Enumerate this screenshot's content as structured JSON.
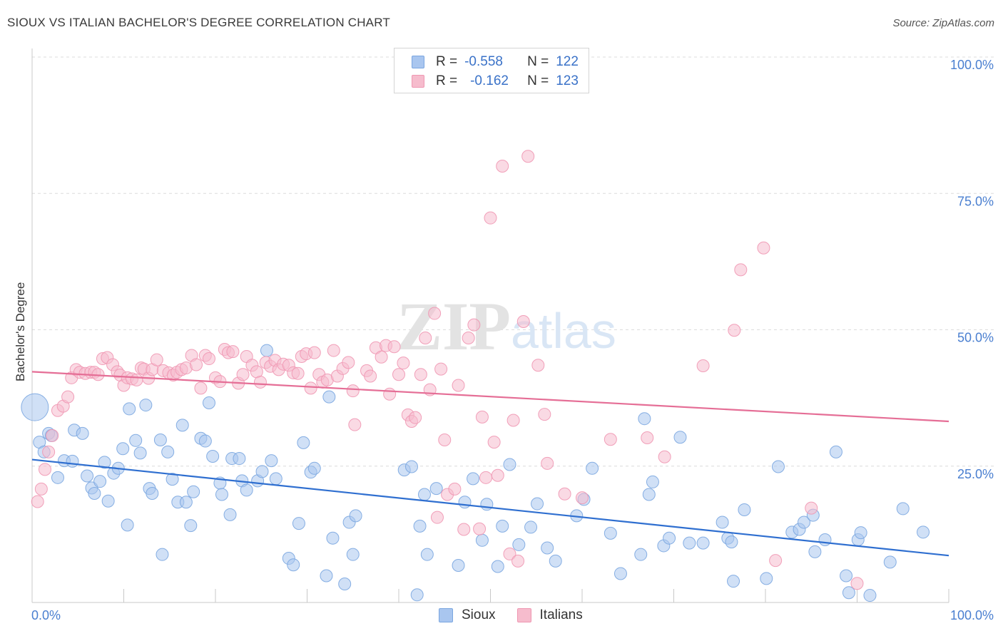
{
  "header": {
    "title": "SIOUX VS ITALIAN BACHELOR'S DEGREE CORRELATION CHART",
    "source": "Source: ZipAtlas.com"
  },
  "watermark": {
    "zip": "ZIP",
    "atlas": "atlas"
  },
  "legend": {
    "rows": [
      {
        "r_label": "R =",
        "r_value": "-0.558",
        "n_label": "N =",
        "n_value": "122"
      },
      {
        "r_label": "R =",
        "r_value": "-0.162",
        "n_label": "N =",
        "n_value": "123"
      }
    ]
  },
  "bottom_legend": {
    "sioux": "Sioux",
    "italians": "Italians"
  },
  "colors": {
    "sioux_fill": "#a9c6ef",
    "sioux_stroke": "#7aa6e0",
    "sioux_line": "#2f6fd0",
    "italians_fill": "#f6bccd",
    "italians_stroke": "#ef97b2",
    "italians_line": "#e56e96",
    "accent_text": "#4a7fd0"
  },
  "chart_data": {
    "type": "scatter",
    "title": "SIOUX VS ITALIAN BACHELOR'S DEGREE CORRELATION CHART",
    "xlabel": "",
    "ylabel": "Bachelor's Degree",
    "xlim": [
      0,
      100
    ],
    "ylim": [
      0,
      100
    ],
    "x_tick_labels": [
      "0.0%",
      "100.0%"
    ],
    "y_ticks": [
      25,
      50,
      75,
      100
    ],
    "y_tick_labels": [
      "25.0%",
      "50.0%",
      "75.0%",
      "100.0%"
    ],
    "grid": true,
    "series": [
      {
        "name": "Sioux",
        "r": -0.558,
        "n": 122,
        "trend": {
          "x": [
            0,
            100
          ],
          "y": [
            26.2,
            8.6
          ]
        },
        "points": [
          [
            0.3,
            35.8
          ],
          [
            0.8,
            29.4
          ],
          [
            1.3,
            27.6
          ],
          [
            1.8,
            31.0
          ],
          [
            2.1,
            30.6
          ],
          [
            2.8,
            22.9
          ],
          [
            3.5,
            26.0
          ],
          [
            4.4,
            25.9
          ],
          [
            4.6,
            31.6
          ],
          [
            5.5,
            31.0
          ],
          [
            6.0,
            23.2
          ],
          [
            6.5,
            21.0
          ],
          [
            6.8,
            20.0
          ],
          [
            7.4,
            22.2
          ],
          [
            7.9,
            25.7
          ],
          [
            8.3,
            18.6
          ],
          [
            8.9,
            23.7
          ],
          [
            9.4,
            24.6
          ],
          [
            9.9,
            28.2
          ],
          [
            10.4,
            14.2
          ],
          [
            10.6,
            35.5
          ],
          [
            11.3,
            29.7
          ],
          [
            11.8,
            27.4
          ],
          [
            12.4,
            36.2
          ],
          [
            12.8,
            20.9
          ],
          [
            13.1,
            20.0
          ],
          [
            14.0,
            29.8
          ],
          [
            14.2,
            8.8
          ],
          [
            14.8,
            27.6
          ],
          [
            15.3,
            22.6
          ],
          [
            15.9,
            18.4
          ],
          [
            16.4,
            32.5
          ],
          [
            16.8,
            18.4
          ],
          [
            17.3,
            14.1
          ],
          [
            17.6,
            20.3
          ],
          [
            18.4,
            30.1
          ],
          [
            18.9,
            29.6
          ],
          [
            19.3,
            36.6
          ],
          [
            19.7,
            26.8
          ],
          [
            20.5,
            21.9
          ],
          [
            20.7,
            19.8
          ],
          [
            21.6,
            16.1
          ],
          [
            21.8,
            26.4
          ],
          [
            22.6,
            26.4
          ],
          [
            22.9,
            22.3
          ],
          [
            23.4,
            20.6
          ],
          [
            24.6,
            22.3
          ],
          [
            25.1,
            24.0
          ],
          [
            25.6,
            46.2
          ],
          [
            26.1,
            26.0
          ],
          [
            26.6,
            22.7
          ],
          [
            28.0,
            8.1
          ],
          [
            28.5,
            6.9
          ],
          [
            29.1,
            14.5
          ],
          [
            29.6,
            29.3
          ],
          [
            30.4,
            23.9
          ],
          [
            30.8,
            24.6
          ],
          [
            32.1,
            4.9
          ],
          [
            32.4,
            37.7
          ],
          [
            32.8,
            11.8
          ],
          [
            34.1,
            3.4
          ],
          [
            34.6,
            14.7
          ],
          [
            35.0,
            8.8
          ],
          [
            35.3,
            15.9
          ],
          [
            40.6,
            24.3
          ],
          [
            41.4,
            24.9
          ],
          [
            42.0,
            1.4
          ],
          [
            42.3,
            14.0
          ],
          [
            42.8,
            19.8
          ],
          [
            43.1,
            8.8
          ],
          [
            44.1,
            20.9
          ],
          [
            46.5,
            6.8
          ],
          [
            47.2,
            18.4
          ],
          [
            48.1,
            22.7
          ],
          [
            49.1,
            11.4
          ],
          [
            49.6,
            18.0
          ],
          [
            50.8,
            6.6
          ],
          [
            51.3,
            14.0
          ],
          [
            52.1,
            25.3
          ],
          [
            53.1,
            10.6
          ],
          [
            54.4,
            13.8
          ],
          [
            55.1,
            18.1
          ],
          [
            56.2,
            10.0
          ],
          [
            57.1,
            7.6
          ],
          [
            59.4,
            15.9
          ],
          [
            60.2,
            18.9
          ],
          [
            61.1,
            24.6
          ],
          [
            63.1,
            12.7
          ],
          [
            64.2,
            5.3
          ],
          [
            66.4,
            8.8
          ],
          [
            66.8,
            33.7
          ],
          [
            67.3,
            19.8
          ],
          [
            67.7,
            22.1
          ],
          [
            68.9,
            10.4
          ],
          [
            69.5,
            11.8
          ],
          [
            70.7,
            30.3
          ],
          [
            71.7,
            10.9
          ],
          [
            73.2,
            10.9
          ],
          [
            75.3,
            14.7
          ],
          [
            75.9,
            11.8
          ],
          [
            76.3,
            11.1
          ],
          [
            76.5,
            3.9
          ],
          [
            77.7,
            17.0
          ],
          [
            80.1,
            4.4
          ],
          [
            81.4,
            24.9
          ],
          [
            82.9,
            12.9
          ],
          [
            83.7,
            13.4
          ],
          [
            84.2,
            14.7
          ],
          [
            85.2,
            16.0
          ],
          [
            85.4,
            9.3
          ],
          [
            86.5,
            11.5
          ],
          [
            87.7,
            27.6
          ],
          [
            88.8,
            4.9
          ],
          [
            89.1,
            1.8
          ],
          [
            90.1,
            11.5
          ],
          [
            90.4,
            12.8
          ],
          [
            91.4,
            1.3
          ],
          [
            93.6,
            7.4
          ],
          [
            95.0,
            17.2
          ],
          [
            97.2,
            12.9
          ]
        ]
      },
      {
        "name": "Italians",
        "r": -0.162,
        "n": 123,
        "trend": {
          "x": [
            0,
            100
          ],
          "y": [
            42.3,
            33.2
          ]
        },
        "points": [
          [
            0.6,
            18.5
          ],
          [
            1.0,
            20.8
          ],
          [
            1.4,
            24.4
          ],
          [
            1.8,
            27.6
          ],
          [
            2.2,
            30.6
          ],
          [
            2.8,
            35.2
          ],
          [
            3.4,
            36.0
          ],
          [
            3.9,
            37.7
          ],
          [
            4.3,
            41.2
          ],
          [
            4.8,
            42.7
          ],
          [
            5.2,
            42.2
          ],
          [
            5.8,
            42.0
          ],
          [
            6.4,
            42.2
          ],
          [
            6.8,
            42.2
          ],
          [
            7.2,
            41.8
          ],
          [
            7.7,
            44.7
          ],
          [
            8.2,
            44.9
          ],
          [
            8.8,
            43.6
          ],
          [
            9.3,
            42.3
          ],
          [
            9.6,
            41.7
          ],
          [
            10.0,
            39.8
          ],
          [
            10.4,
            41.2
          ],
          [
            10.9,
            41.0
          ],
          [
            11.4,
            40.8
          ],
          [
            11.9,
            43.0
          ],
          [
            12.2,
            42.8
          ],
          [
            12.7,
            41.1
          ],
          [
            13.1,
            42.7
          ],
          [
            13.6,
            44.5
          ],
          [
            14.3,
            42.5
          ],
          [
            14.9,
            42.1
          ],
          [
            15.4,
            41.7
          ],
          [
            15.8,
            42.2
          ],
          [
            16.3,
            42.7
          ],
          [
            16.8,
            43.0
          ],
          [
            17.4,
            45.3
          ],
          [
            17.9,
            43.6
          ],
          [
            18.4,
            39.3
          ],
          [
            18.9,
            45.3
          ],
          [
            19.3,
            44.7
          ],
          [
            20.0,
            41.2
          ],
          [
            20.5,
            40.5
          ],
          [
            21.0,
            46.4
          ],
          [
            21.4,
            45.8
          ],
          [
            21.9,
            46.0
          ],
          [
            22.5,
            40.2
          ],
          [
            23.0,
            41.8
          ],
          [
            23.4,
            45.1
          ],
          [
            24.0,
            43.5
          ],
          [
            24.5,
            42.3
          ],
          [
            24.9,
            40.4
          ],
          [
            25.5,
            44.0
          ],
          [
            26.0,
            43.3
          ],
          [
            26.5,
            44.4
          ],
          [
            26.9,
            42.7
          ],
          [
            27.4,
            43.7
          ],
          [
            28.0,
            43.5
          ],
          [
            28.5,
            42.1
          ],
          [
            29.0,
            42.0
          ],
          [
            29.4,
            45.1
          ],
          [
            29.9,
            45.6
          ],
          [
            30.4,
            39.3
          ],
          [
            30.8,
            45.8
          ],
          [
            31.3,
            41.8
          ],
          [
            31.7,
            40.4
          ],
          [
            32.2,
            40.8
          ],
          [
            32.9,
            46.2
          ],
          [
            33.3,
            41.5
          ],
          [
            33.9,
            42.9
          ],
          [
            34.5,
            44.0
          ],
          [
            35.0,
            38.8
          ],
          [
            35.2,
            32.6
          ],
          [
            36.5,
            42.5
          ],
          [
            36.9,
            41.5
          ],
          [
            37.5,
            46.7
          ],
          [
            38.1,
            45.0
          ],
          [
            38.6,
            47.1
          ],
          [
            39.0,
            38.2
          ],
          [
            39.5,
            46.9
          ],
          [
            40.0,
            41.8
          ],
          [
            40.5,
            43.9
          ],
          [
            41.0,
            34.4
          ],
          [
            41.4,
            33.2
          ],
          [
            41.8,
            33.9
          ],
          [
            42.4,
            41.8
          ],
          [
            42.9,
            48.5
          ],
          [
            43.4,
            39.0
          ],
          [
            43.9,
            53.0
          ],
          [
            44.2,
            15.6
          ],
          [
            44.6,
            42.8
          ],
          [
            45.0,
            29.8
          ],
          [
            45.3,
            19.8
          ],
          [
            46.1,
            20.8
          ],
          [
            46.5,
            39.8
          ],
          [
            47.1,
            13.4
          ],
          [
            47.6,
            48.5
          ],
          [
            48.2,
            50.9
          ],
          [
            48.8,
            13.5
          ],
          [
            49.1,
            34.0
          ],
          [
            49.5,
            22.9
          ],
          [
            50.0,
            70.5
          ],
          [
            50.4,
            29.4
          ],
          [
            50.8,
            23.3
          ],
          [
            51.3,
            80.0
          ],
          [
            52.1,
            8.9
          ],
          [
            52.5,
            33.4
          ],
          [
            53.0,
            7.6
          ],
          [
            53.6,
            51.5
          ],
          [
            54.1,
            81.8
          ],
          [
            55.2,
            43.5
          ],
          [
            55.9,
            34.5
          ],
          [
            56.2,
            25.5
          ],
          [
            58.1,
            19.9
          ],
          [
            60.0,
            19.2
          ],
          [
            63.1,
            29.9
          ],
          [
            67.1,
            30.2
          ],
          [
            69.0,
            26.7
          ],
          [
            73.2,
            43.4
          ],
          [
            76.6,
            49.9
          ],
          [
            77.3,
            61.0
          ],
          [
            79.8,
            65.0
          ],
          [
            81.1,
            7.7
          ],
          [
            85.0,
            17.3
          ],
          [
            90.0,
            3.5
          ]
        ]
      }
    ]
  }
}
